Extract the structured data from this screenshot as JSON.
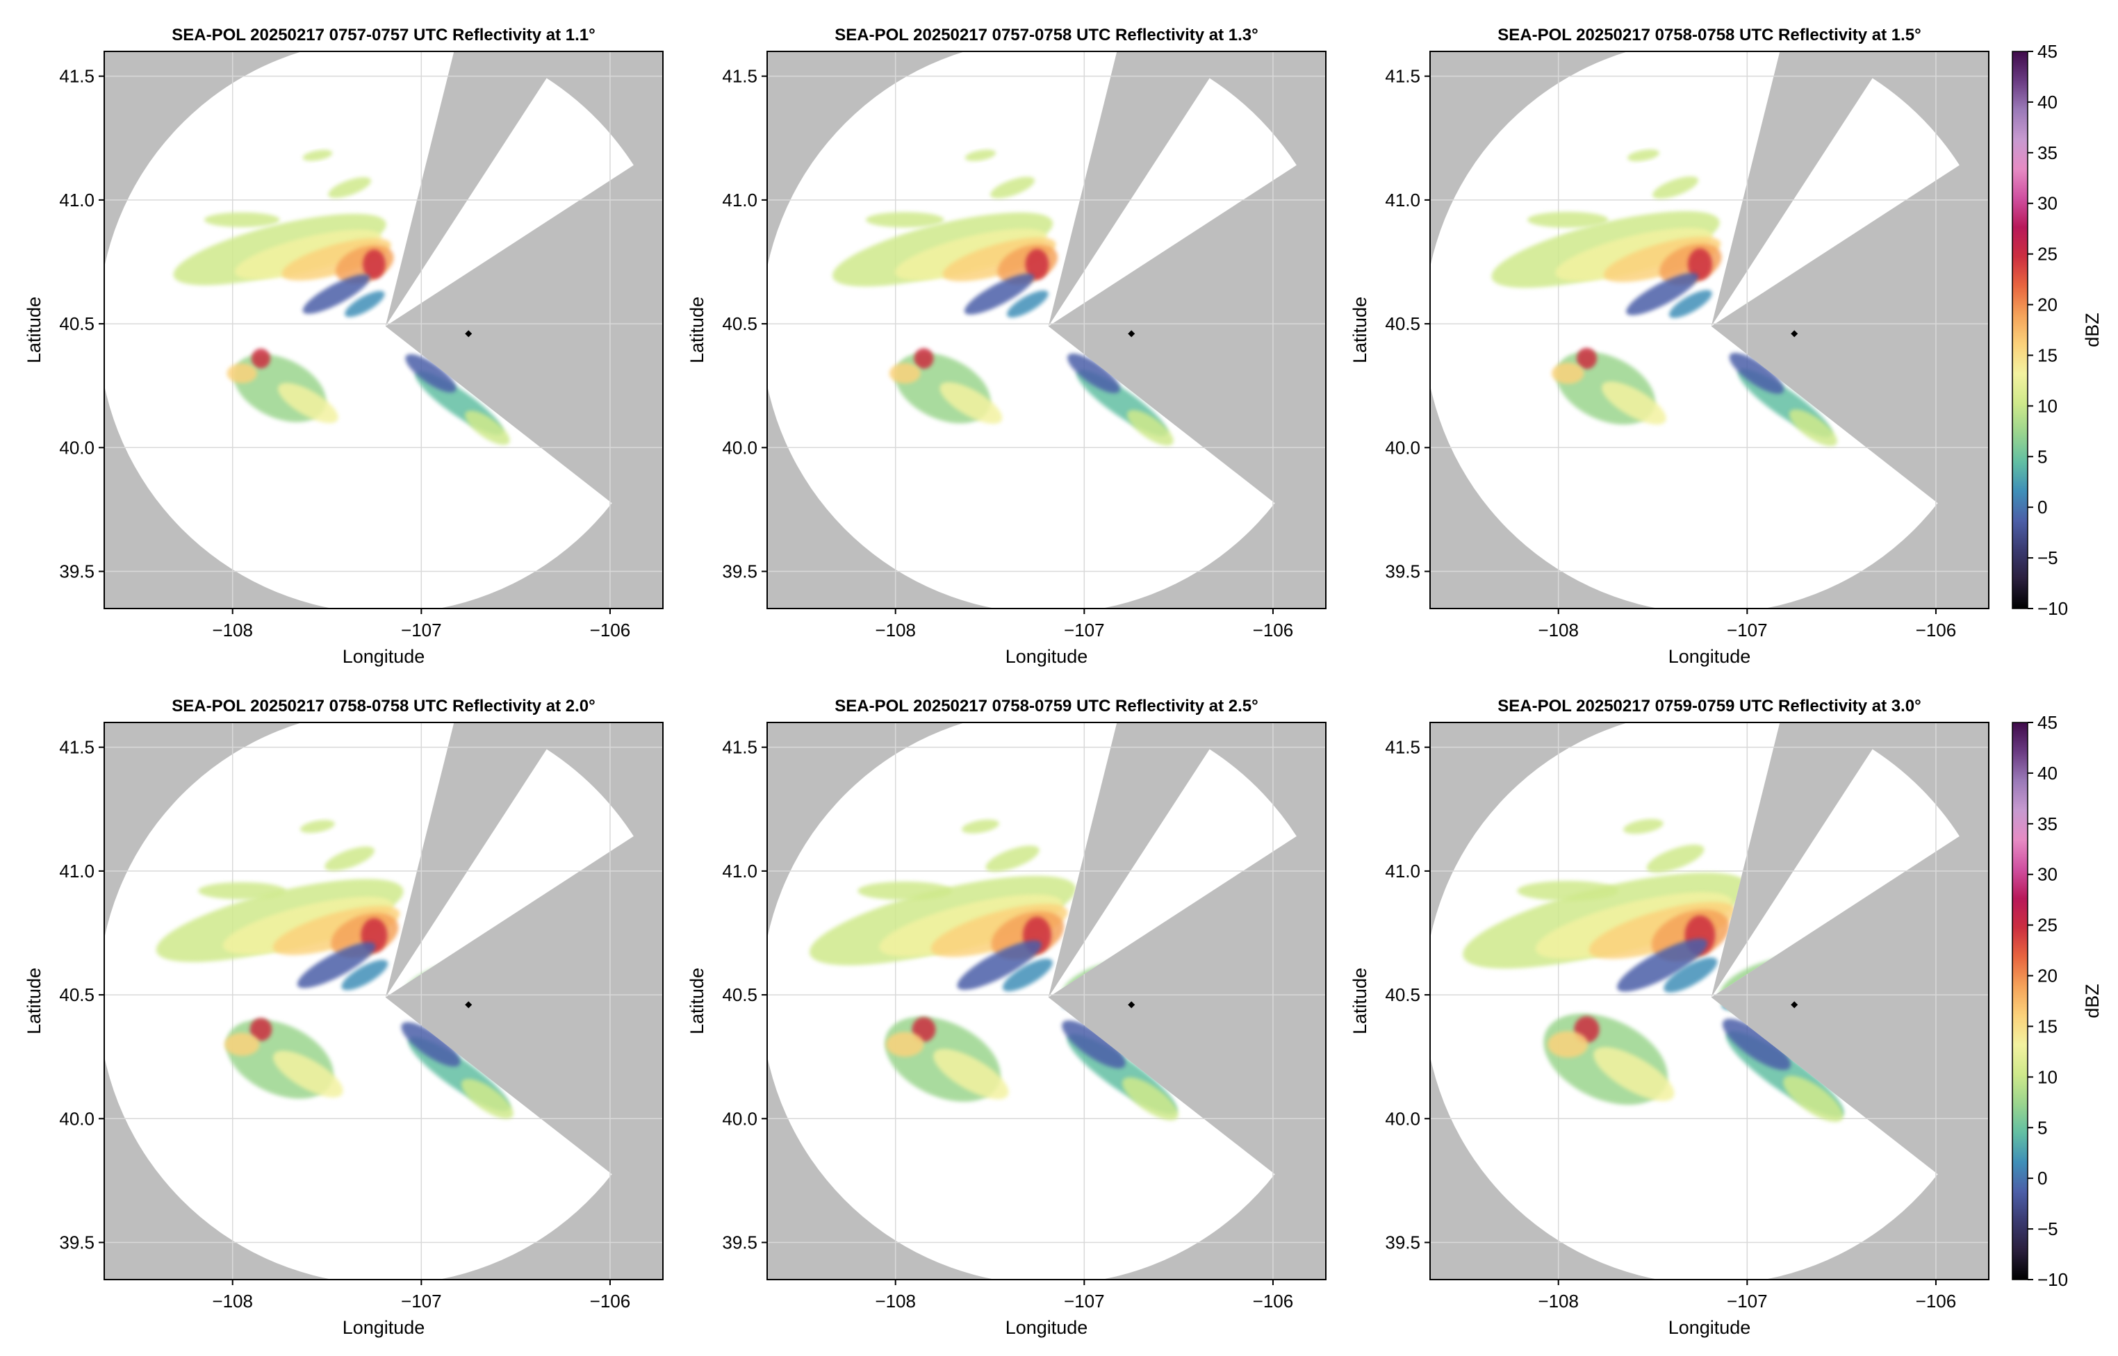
{
  "figure": {
    "colors": {
      "background": "#ffffff",
      "no_coverage": "#bebebe",
      "scan_area": "#ffffff",
      "grid": "#d9d9d9",
      "radar_marker": "#000000"
    },
    "colorbar": {
      "label": "dBZ",
      "ticks": [
        "45",
        "40",
        "35",
        "30",
        "25",
        "20",
        "15",
        "10",
        "5",
        "0",
        "−5",
        "−10"
      ],
      "range": [
        -10,
        45
      ],
      "colormap": "Spectral reversed (black/purple low, blue, green, yellow, orange, red, magenta, purple high)",
      "stops": [
        "#000000",
        "#2a1f3d",
        "#3a3a70",
        "#4c5fa8",
        "#3f8fb8",
        "#62bfa3",
        "#9bd58e",
        "#cfe98b",
        "#f3f2a0",
        "#fbd27b",
        "#f5a35a",
        "#e8653f",
        "#cc2f40",
        "#b8195a",
        "#d050a0",
        "#e68cc4",
        "#c79ad0",
        "#9b7ab8",
        "#6a3b82",
        "#3f0b4a"
      ]
    },
    "common": {
      "xlabel": "Longitude",
      "ylabel": "Latitude",
      "xticks": [
        "−108",
        "−107",
        "−106"
      ],
      "yticks": [
        "41.5",
        "41.0",
        "40.5",
        "40.0",
        "39.5"
      ]
    }
  },
  "chart_data": [
    {
      "type": "heatmap",
      "title": "SEA-POL 20250217 0757-0757 UTC Reflectivity at 1.1°",
      "elevation_deg": 1.1,
      "xlim": [
        -108.68,
        -105.72
      ],
      "ylim": [
        39.35,
        41.6
      ],
      "x_ticks": [
        -108,
        -107,
        -106
      ],
      "y_ticks": [
        39.5,
        40.0,
        40.5,
        41.0,
        41.5
      ],
      "radar_location": [
        -107.19,
        40.49
      ],
      "marker": [
        -106.75,
        40.46
      ],
      "colorbar": false
    },
    {
      "type": "heatmap",
      "title": "SEA-POL 20250217 0757-0758 UTC Reflectivity at 1.3°",
      "elevation_deg": 1.3,
      "xlim": [
        -108.68,
        -105.72
      ],
      "ylim": [
        39.35,
        41.6
      ],
      "x_ticks": [
        -108,
        -107,
        -106
      ],
      "y_ticks": [
        39.5,
        40.0,
        40.5,
        41.0,
        41.5
      ],
      "radar_location": [
        -107.19,
        40.49
      ],
      "marker": [
        -106.75,
        40.46
      ],
      "colorbar": false
    },
    {
      "type": "heatmap",
      "title": "SEA-POL 20250217 0758-0758 UTC Reflectivity at 1.5°",
      "elevation_deg": 1.5,
      "xlim": [
        -108.68,
        -105.72
      ],
      "ylim": [
        39.35,
        41.6
      ],
      "x_ticks": [
        -108,
        -107,
        -106
      ],
      "y_ticks": [
        39.5,
        40.0,
        40.5,
        41.0,
        41.5
      ],
      "radar_location": [
        -107.19,
        40.49
      ],
      "marker": [
        -106.75,
        40.46
      ],
      "colorbar": true
    },
    {
      "type": "heatmap",
      "title": "SEA-POL 20250217 0758-0758 UTC Reflectivity at 2.0°",
      "elevation_deg": 2.0,
      "xlim": [
        -108.68,
        -105.72
      ],
      "ylim": [
        39.35,
        41.6
      ],
      "x_ticks": [
        -108,
        -107,
        -106
      ],
      "y_ticks": [
        39.5,
        40.0,
        40.5,
        41.0,
        41.5
      ],
      "radar_location": [
        -107.19,
        40.49
      ],
      "marker": [
        -106.75,
        40.46
      ],
      "colorbar": false
    },
    {
      "type": "heatmap",
      "title": "SEA-POL 20250217 0758-0759 UTC Reflectivity at 2.5°",
      "elevation_deg": 2.5,
      "xlim": [
        -108.68,
        -105.72
      ],
      "ylim": [
        39.35,
        41.6
      ],
      "x_ticks": [
        -108,
        -107,
        -106
      ],
      "y_ticks": [
        39.5,
        40.0,
        40.5,
        41.0,
        41.5
      ],
      "radar_location": [
        -107.19,
        40.49
      ],
      "marker": [
        -106.75,
        40.46
      ],
      "colorbar": false
    },
    {
      "type": "heatmap",
      "title": "SEA-POL 20250217 0759-0759 UTC Reflectivity at 3.0°",
      "elevation_deg": 3.0,
      "xlim": [
        -108.68,
        -105.72
      ],
      "ylim": [
        39.35,
        41.6
      ],
      "x_ticks": [
        -108,
        -107,
        -106
      ],
      "y_ticks": [
        39.5,
        40.0,
        40.5,
        41.0,
        41.5
      ],
      "radar_location": [
        -107.19,
        40.49
      ],
      "marker": [
        -106.75,
        40.46
      ],
      "colorbar": true
    }
  ]
}
